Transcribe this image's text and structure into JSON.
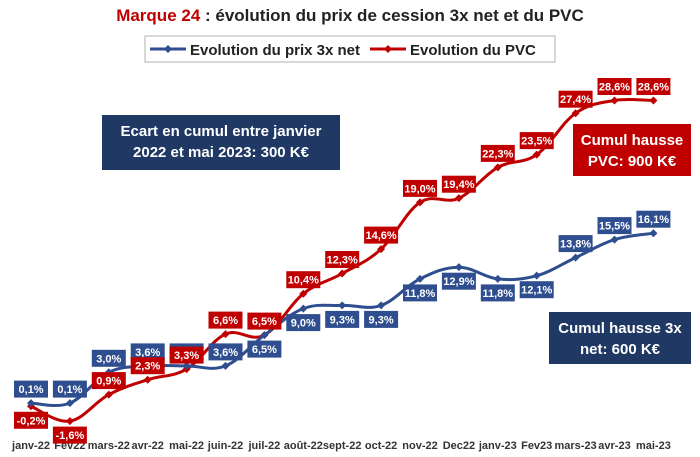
{
  "title": {
    "brand": "Marque 24",
    "rest": " : évolution du prix de cession 3x net et du PVC"
  },
  "colors": {
    "net": "#2e4e8f",
    "pvc": "#c00000",
    "navy": "#1f3864"
  },
  "chart_data": {
    "type": "line",
    "categories": [
      "janv-22",
      "Fev22",
      "mars-22",
      "avr-22",
      "mai-22",
      "juin-22",
      "juil-22",
      "août-22",
      "sept-22",
      "oct-22",
      "nov-22",
      "Dec22",
      "janv-23",
      "Fev23",
      "mars-23",
      "avr-23",
      "mai-23"
    ],
    "ylim": [
      -3,
      31
    ],
    "series": [
      {
        "name": "Evolution du prix 3x net",
        "color": "#2e4e8f",
        "values": [
          0.1,
          0.1,
          3.0,
          3.6,
          3.6,
          3.6,
          6.5,
          9.0,
          9.3,
          9.3,
          11.8,
          12.9,
          11.8,
          12.1,
          13.8,
          15.5,
          16.1
        ],
        "labels": [
          "0,1%",
          "0,1%",
          "3,0%",
          "3,6%",
          "3,6%",
          "3,6%",
          "6,5%",
          "9,0%",
          "9,3%",
          "9,3%",
          "11,8%",
          "12,9%",
          "11,8%",
          "12,1%",
          "13,8%",
          "15,5%",
          "16,1%"
        ]
      },
      {
        "name": "Evolution du PVC",
        "color": "#c00000",
        "values": [
          -0.2,
          -1.6,
          0.9,
          2.3,
          3.3,
          6.6,
          6.5,
          10.4,
          12.3,
          14.6,
          19.0,
          19.4,
          22.3,
          23.5,
          27.4,
          28.6,
          28.6
        ],
        "labels": [
          "-0,2%",
          "-1,6%",
          "0,9%",
          "2,3%",
          "3,3%",
          "6,6%",
          "6,5%",
          "10,4%",
          "12,3%",
          "14,6%",
          "19,0%",
          "19,4%",
          "22,3%",
          "23,5%",
          "27,4%",
          "28,6%",
          "28,6%"
        ]
      }
    ],
    "annotations": [
      {
        "id": "ecart",
        "lines": [
          "Ecart en cumul entre janvier",
          "2022 et mai 2023: 300 K€"
        ],
        "style": "navy"
      },
      {
        "id": "pvc",
        "lines": [
          "Cumul hausse",
          "PVC: 900 K€"
        ],
        "style": "red"
      },
      {
        "id": "net",
        "lines": [
          "Cumul hausse 3x",
          "net: 600 K€"
        ],
        "style": "navy"
      }
    ],
    "legend_position": "top"
  }
}
